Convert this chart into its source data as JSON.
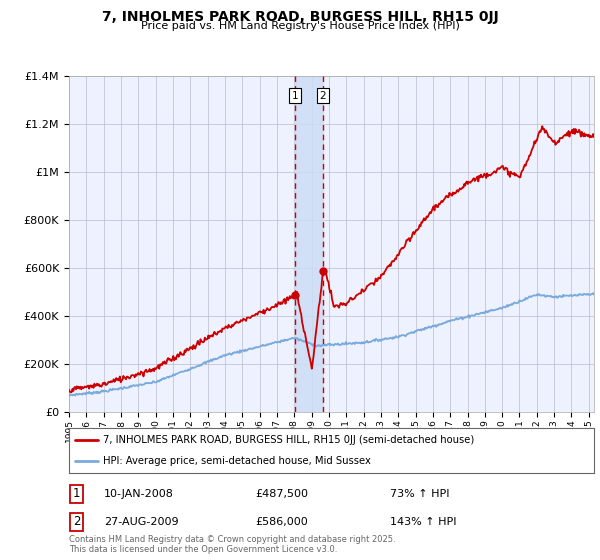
{
  "title": "7, INHOLMES PARK ROAD, BURGESS HILL, RH15 0JJ",
  "subtitle": "Price paid vs. HM Land Registry's House Price Index (HPI)",
  "footnote": "Contains HM Land Registry data © Crown copyright and database right 2025.\nThis data is licensed under the Open Government Licence v3.0.",
  "legend_line1": "7, INHOLMES PARK ROAD, BURGESS HILL, RH15 0JJ (semi-detached house)",
  "legend_line2": "HPI: Average price, semi-detached house, Mid Sussex",
  "transaction1_date": "10-JAN-2008",
  "transaction1_price": "£487,500",
  "transaction1_hpi": "73% ↑ HPI",
  "transaction2_date": "27-AUG-2009",
  "transaction2_price": "£586,000",
  "transaction2_hpi": "143% ↑ HPI",
  "red_color": "#cc0000",
  "blue_color": "#7aaadd",
  "bg_color": "#eef2ff",
  "shade_color": "#ccddf5",
  "grid_color": "#bbbbcc",
  "year_start": 1995,
  "year_end": 2025,
  "ylim_min": 0,
  "ylim_max": 1400000,
  "xlim_min": 1995,
  "xlim_max": 2025.3,
  "t1_year": 2008.04,
  "t2_year": 2009.65,
  "t1_price": 487500,
  "t2_price": 586000
}
